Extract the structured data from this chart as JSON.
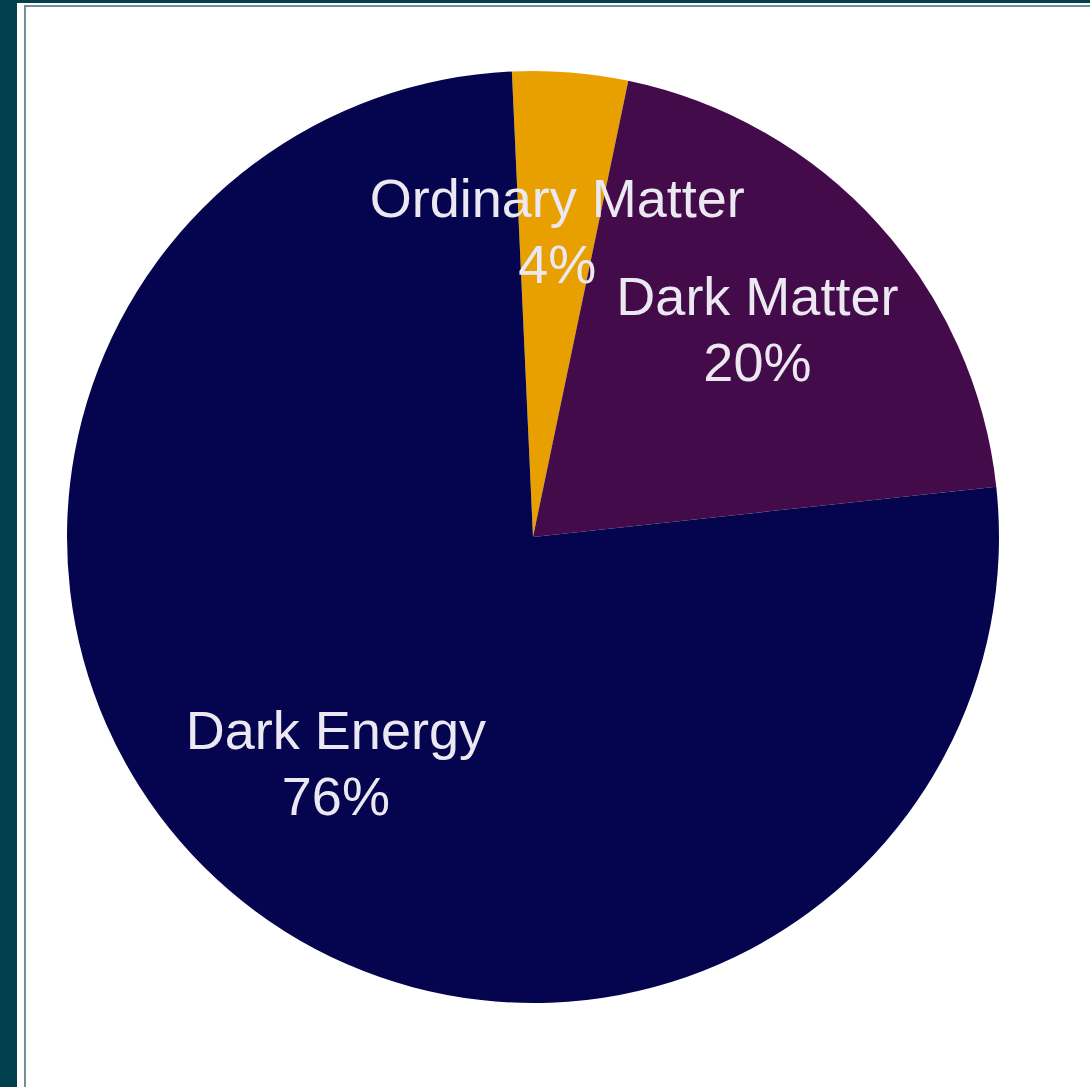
{
  "chart_data": {
    "type": "pie",
    "categories": [
      "Ordinary Matter",
      "Dark Matter",
      "Dark Energy"
    ],
    "values": [
      4,
      20,
      76
    ],
    "colors": [
      "#e8a000",
      "#440b4b",
      "#04044f"
    ],
    "value_labels": [
      "4%",
      "20%",
      "76%"
    ]
  }
}
